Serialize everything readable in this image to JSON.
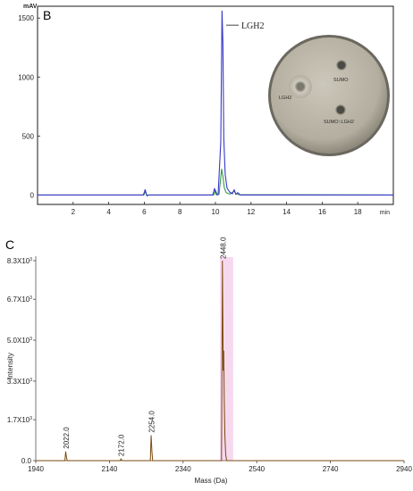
{
  "chart_data": [
    {
      "type": "line",
      "panel_label": "B",
      "y_unit": "mAV",
      "x_unit": "min",
      "xlim": [
        0,
        20
      ],
      "ylim": [
        -80,
        1600
      ],
      "x_ticks": [
        2,
        4,
        6,
        8,
        10,
        12,
        14,
        16,
        18
      ],
      "y_ticks": [
        0,
        500,
        1000,
        1500
      ],
      "series": [
        {
          "color": "#3838c8",
          "x": [
            0,
            5.95,
            6.05,
            6.15,
            6.25,
            9.85,
            9.95,
            10.05,
            10.15,
            10.3,
            10.37,
            10.42,
            10.47,
            10.55,
            10.65,
            10.8,
            10.95,
            11.05,
            11.15,
            11.25,
            11.4,
            20
          ],
          "y": [
            0,
            0,
            45,
            -8,
            0,
            0,
            55,
            2,
            3,
            450,
            1560,
            1280,
            480,
            170,
            60,
            25,
            10,
            45,
            5,
            20,
            0,
            0
          ]
        },
        {
          "color": "#3a9a4a",
          "x": [
            0,
            5.98,
            6.06,
            6.14,
            6.22,
            9.9,
            10.0,
            10.1,
            10.2,
            10.35,
            10.42,
            10.5,
            10.6,
            10.8,
            10.95,
            11.05,
            11.15,
            11.3,
            20
          ],
          "y": [
            0,
            0,
            30,
            -5,
            0,
            0,
            40,
            3,
            5,
            220,
            160,
            60,
            20,
            8,
            20,
            35,
            10,
            3,
            0
          ]
        }
      ],
      "annotation": "LGH2",
      "inset": {
        "labels": [
          "LGH2",
          "SUMO",
          "SUMO::LGH2"
        ]
      }
    },
    {
      "type": "line",
      "panel_label": "C",
      "xlabel": "Mass (Da)",
      "ylabel": "Intensity",
      "xlim": [
        1940,
        2940
      ],
      "ylim": [
        0,
        8300
      ],
      "x_ticks": [
        1940,
        2140,
        2340,
        2540,
        2740,
        2940
      ],
      "y_ticks": [
        {
          "value": 0,
          "label": "0.0"
        },
        {
          "value": 1700,
          "label": "1.7X10"
        },
        {
          "value": 3300,
          "label": "3.3X10"
        },
        {
          "value": 5000,
          "label": "5.0X10"
        },
        {
          "value": 6700,
          "label": "6.7X10"
        },
        {
          "value": 8300,
          "label": "8.3X10"
        }
      ],
      "y_tick_exponent": "3",
      "peaks": [
        {
          "mass": 2022.0,
          "label": "2022.0",
          "intensity": 380
        },
        {
          "mass": 2172.0,
          "label": "2172.0",
          "intensity": 70
        },
        {
          "mass": 2254.0,
          "label": "2254.0",
          "intensity": 1050
        },
        {
          "mass": 2448.0,
          "label": "2448.0",
          "intensity": 8300
        }
      ],
      "colors": {
        "line": "#7a4a10",
        "highlight": "#f7d9ef"
      }
    }
  ]
}
